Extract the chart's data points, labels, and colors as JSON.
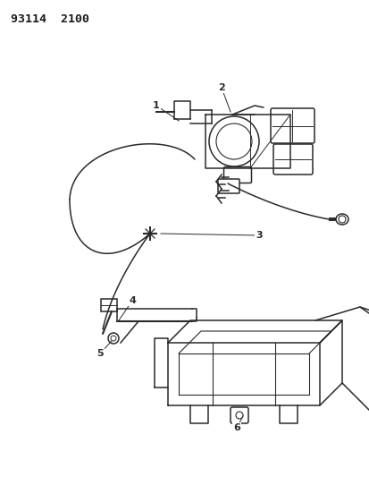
{
  "title_text": "93114  2100",
  "background_color": "#ffffff",
  "line_color": "#2a2a2a",
  "label_color": "#1a1a1a",
  "fig_width": 4.14,
  "fig_height": 5.33,
  "dpi": 100
}
